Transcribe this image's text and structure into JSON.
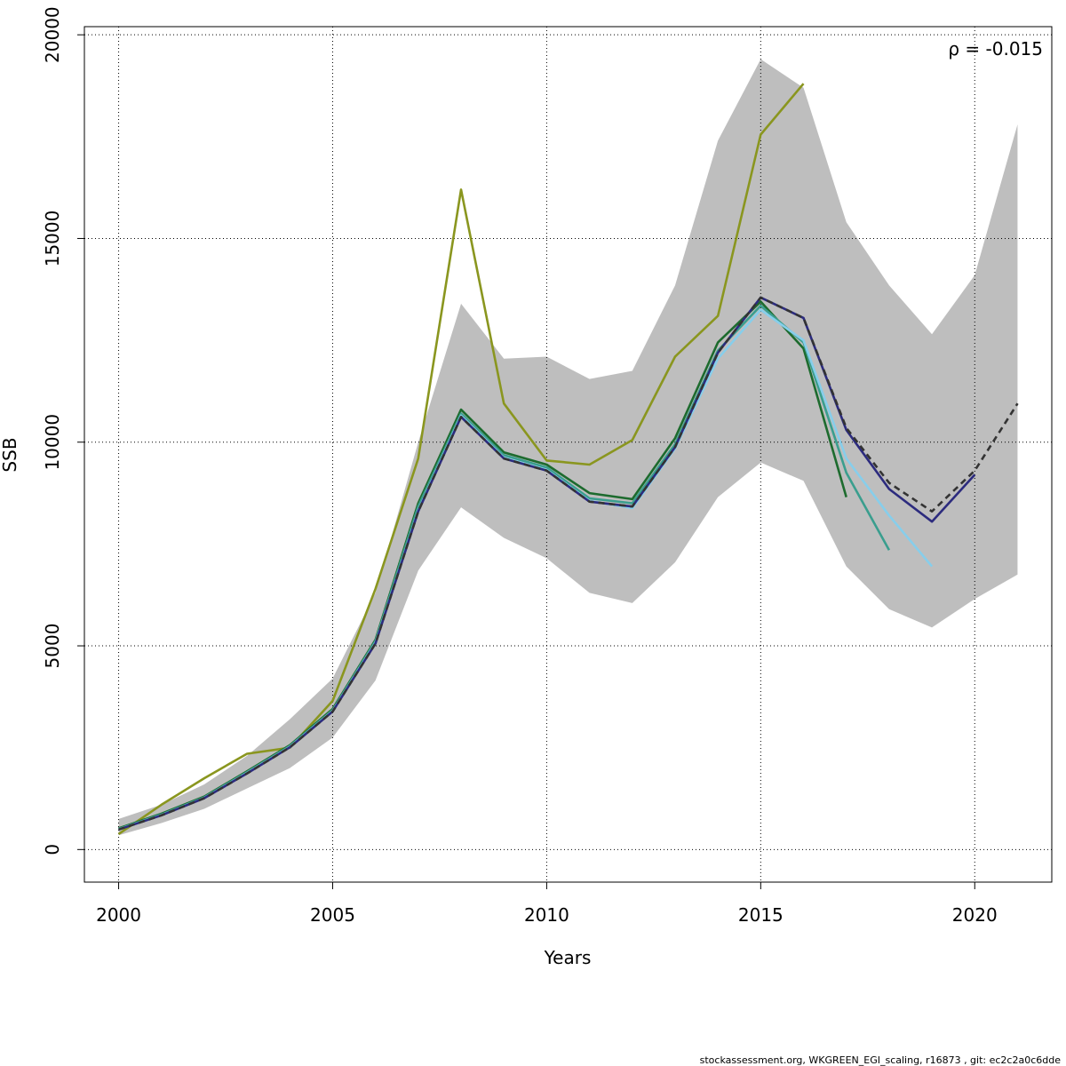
{
  "chart_data": {
    "type": "line",
    "xlabel": "Years",
    "ylabel": "SSB",
    "xlim": [
      1999.2,
      2021.8
    ],
    "ylim": [
      -800,
      20200
    ],
    "x_ticks": [
      2000,
      2005,
      2010,
      2015,
      2020
    ],
    "y_ticks": [
      0,
      5000,
      10000,
      15000,
      20000
    ],
    "grid": true,
    "annotation": "ρ = -0.015",
    "confidence_band": {
      "x": [
        2000,
        2001,
        2002,
        2003,
        2004,
        2005,
        2006,
        2007,
        2008,
        2009,
        2010,
        2011,
        2012,
        2013,
        2014,
        2015,
        2016,
        2017,
        2018,
        2019,
        2020,
        2021
      ],
      "lower": [
        350,
        650,
        1000,
        1500,
        2000,
        2750,
        4150,
        6850,
        8400,
        7650,
        7150,
        6300,
        6050,
        7050,
        8650,
        9500,
        9050,
        6950,
        5900,
        5450,
        6150,
        6750
      ],
      "upper": [
        750,
        1100,
        1600,
        2300,
        3200,
        4200,
        6300,
        10000,
        13400,
        12050,
        12100,
        11550,
        11750,
        13850,
        17400,
        19400,
        18700,
        15400,
        13850,
        12650,
        14100,
        17800
      ],
      "color": "#bebebe"
    },
    "series": [
      {
        "color": "#8a961f",
        "dash": false,
        "x": [
          2000,
          2001,
          2002,
          2003,
          2004,
          2005,
          2006,
          2007,
          2008,
          2009,
          2010,
          2011,
          2012,
          2013,
          2014,
          2015,
          2016
        ],
        "y": [
          380,
          1100,
          1750,
          2350,
          2500,
          3650,
          6400,
          9600,
          16200,
          10950,
          9550,
          9450,
          10050,
          12100,
          13100,
          17550,
          18800
        ]
      },
      {
        "color": "#1d6b2e",
        "dash": false,
        "x": [
          2000,
          2001,
          2002,
          2003,
          2004,
          2005,
          2006,
          2007,
          2008,
          2009,
          2010,
          2011,
          2012,
          2013,
          2014,
          2015,
          2016,
          2017
        ],
        "y": [
          520,
          880,
          1300,
          1920,
          2560,
          3450,
          5150,
          8500,
          10800,
          9750,
          9450,
          8750,
          8600,
          10100,
          12450,
          13450,
          12300,
          8650
        ]
      },
      {
        "color": "#3a9e8e",
        "dash": false,
        "x": [
          2000,
          2001,
          2002,
          2003,
          2004,
          2005,
          2006,
          2007,
          2008,
          2009,
          2010,
          2011,
          2012,
          2013,
          2014,
          2015,
          2016,
          2017,
          2018
        ],
        "y": [
          505,
          860,
          1280,
          1900,
          2540,
          3420,
          5120,
          8420,
          10700,
          9680,
          9380,
          8620,
          8500,
          9950,
          12250,
          13350,
          12450,
          9250,
          7350
        ]
      },
      {
        "color": "#87ceeb",
        "dash": false,
        "x": [
          2000,
          2001,
          2002,
          2003,
          2004,
          2005,
          2006,
          2007,
          2008,
          2009,
          2010,
          2011,
          2012,
          2013,
          2014,
          2015,
          2016,
          2017,
          2018,
          2019
        ],
        "y": [
          495,
          845,
          1265,
          1880,
          2520,
          3400,
          5080,
          8320,
          10650,
          9620,
          9320,
          8560,
          8380,
          9850,
          12050,
          13250,
          12500,
          9600,
          8200,
          6950
        ]
      },
      {
        "color": "#2c2b7e",
        "dash": false,
        "x": [
          2000,
          2001,
          2002,
          2003,
          2004,
          2005,
          2006,
          2007,
          2008,
          2009,
          2010,
          2011,
          2012,
          2013,
          2014,
          2015,
          2016,
          2017,
          2018,
          2019,
          2020
        ],
        "y": [
          490,
          840,
          1260,
          1870,
          2510,
          3390,
          5060,
          8300,
          10620,
          9600,
          9300,
          8540,
          8420,
          9880,
          12200,
          13550,
          13050,
          10300,
          8850,
          8050,
          9200
        ]
      },
      {
        "color": "#333333",
        "dash": true,
        "x": [
          2000,
          2001,
          2002,
          2003,
          2004,
          2005,
          2006,
          2007,
          2008,
          2009,
          2010,
          2011,
          2012,
          2013,
          2014,
          2015,
          2016,
          2017,
          2018,
          2019,
          2020,
          2021
        ],
        "y": [
          490,
          840,
          1260,
          1870,
          2510,
          3390,
          5060,
          8300,
          10620,
          9600,
          9300,
          8540,
          8420,
          9880,
          12200,
          13550,
          13050,
          10350,
          9000,
          8300,
          9300,
          10950
        ]
      }
    ]
  },
  "footer": "stockassessment.org, WKGREEN_EGI_scaling, r16873 , git: ec2c2a0c6dde"
}
